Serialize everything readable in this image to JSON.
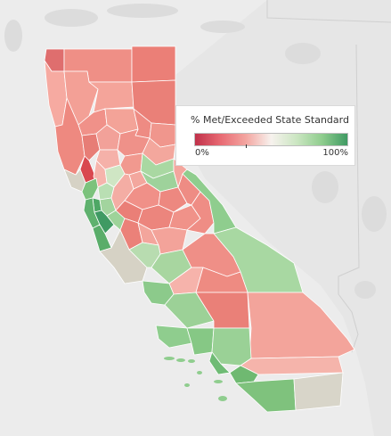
{
  "legend": {
    "title": "% Met/Exceeded State Standard",
    "min_label": "0%",
    "max_label": "100%",
    "gradient": [
      "#c0314a",
      "#e86a73",
      "#f3a5a0",
      "#f7f2ee",
      "#cbe6c2",
      "#8fcd8e",
      "#3f9a63"
    ]
  },
  "colors": {
    "background": "#ececec",
    "land": "#e3e3e3",
    "ocean": "#ececec",
    "county_border": "#ffffff",
    "no_data": "#d6d3c8"
  }
}
